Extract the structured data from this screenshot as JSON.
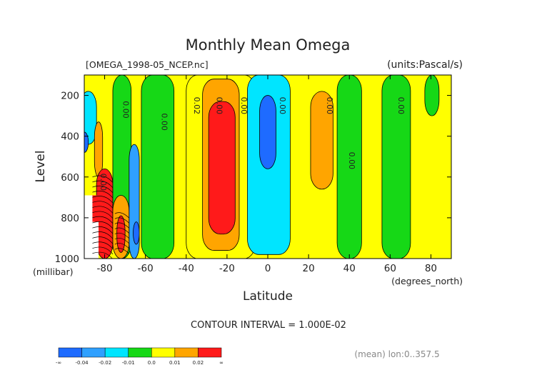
{
  "chart_data": {
    "type": "contour",
    "title": "Monthly Mean Omega",
    "file_label": "[OMEGA_1998-05_NCEP.nc]",
    "units_label": "(units:Pascal/s)",
    "xlabel": "Latitude",
    "xunit": "(degrees_north)",
    "ylabel": "Level",
    "yunit": "(millibar)",
    "xlim": [
      -90,
      90
    ],
    "ylim": [
      1000,
      100
    ],
    "x_ticks": [
      -80,
      -60,
      -40,
      -20,
      0,
      20,
      40,
      60,
      80
    ],
    "x_tick_labels": [
      "-80",
      "-60",
      "-40",
      "-20",
      "0",
      "20",
      "40",
      "60",
      "80"
    ],
    "y_ticks": [
      200,
      400,
      600,
      800,
      1000
    ],
    "y_tick_labels": [
      "200",
      "400",
      "600",
      "800",
      "1000"
    ],
    "contour_interval_label": "CONTOUR INTERVAL = 1.000E-02",
    "footer_label": "(mean) lon:0..357.5",
    "contour_line_labels": [
      "0.00",
      "0.00",
      "0.00",
      "0.02",
      "0.00",
      "0.00",
      "0.00",
      "0.00",
      "0.00",
      "0.00"
    ],
    "legend": {
      "tick_labels": [
        "-∞",
        "-0.04",
        "-0.02",
        "-0.01",
        "0.0",
        "0.01",
        "0.02",
        "∞"
      ],
      "colors": [
        "#1e6bff",
        "#2fa0ff",
        "#00e5ff",
        "#16d816",
        "#ffff00",
        "#ffa500",
        "#ff1a1a"
      ]
    },
    "regions": [
      {
        "value_band": "-0.02..-0.01",
        "lat": [
          -92,
          -84
        ],
        "level": [
          180,
          440
        ]
      },
      {
        "value_band": "-0.04..-0.02",
        "lat": [
          -92,
          -88
        ],
        "level": [
          380,
          480
        ]
      },
      {
        "value_band": "0.01..0.02",
        "lat": [
          -85,
          -81
        ],
        "level": [
          330,
          600
        ]
      },
      {
        "value_band": ">0.02",
        "lat": [
          -84,
          -76
        ],
        "level": [
          560,
          1000
        ]
      },
      {
        "value_band": "-0.01..0",
        "lat": [
          -76,
          -67
        ],
        "level": [
          100,
          1000
        ]
      },
      {
        "value_band": "0.01..0.02",
        "lat": [
          -76,
          -68
        ],
        "level": [
          690,
          1000
        ]
      },
      {
        "value_band": ">0.02",
        "lat": [
          -74,
          -70
        ],
        "level": [
          790,
          970
        ]
      },
      {
        "value_band": "-0.02..-0.01",
        "lat": [
          -68,
          -63
        ],
        "level": [
          440,
          1000
        ]
      },
      {
        "value_band": "-0.04..-0.02",
        "lat": [
          -66,
          -63
        ],
        "level": [
          820,
          930
        ]
      },
      {
        "value_band": "-0.01..0",
        "lat": [
          -62,
          -46
        ],
        "level": [
          100,
          1000
        ]
      },
      {
        "value_band": "0..0.01",
        "lat": [
          -40,
          -6
        ],
        "level": [
          100,
          1000
        ]
      },
      {
        "value_band": "0.01..0.02",
        "lat": [
          -32,
          -14
        ],
        "level": [
          120,
          960
        ]
      },
      {
        "value_band": ">0.02",
        "lat": [
          -29,
          -16
        ],
        "level": [
          230,
          880
        ]
      },
      {
        "value_band": "-0.02..-0.01",
        "lat": [
          -10,
          11
        ],
        "level": [
          100,
          980
        ]
      },
      {
        "value_band": "-0.04..-0.02",
        "lat": [
          -4,
          4
        ],
        "level": [
          200,
          560
        ]
      },
      {
        "value_band": "0.01..0.02",
        "lat": [
          21,
          32
        ],
        "level": [
          180,
          660
        ]
      },
      {
        "value_band": "-0.01..0",
        "lat": [
          34,
          46
        ],
        "level": [
          100,
          1000
        ]
      },
      {
        "value_band": "-0.01..0",
        "lat": [
          56,
          70
        ],
        "level": [
          100,
          1000
        ]
      },
      {
        "value_band": "-0.01..0",
        "lat": [
          77,
          84
        ],
        "level": [
          100,
          300
        ]
      }
    ]
  }
}
